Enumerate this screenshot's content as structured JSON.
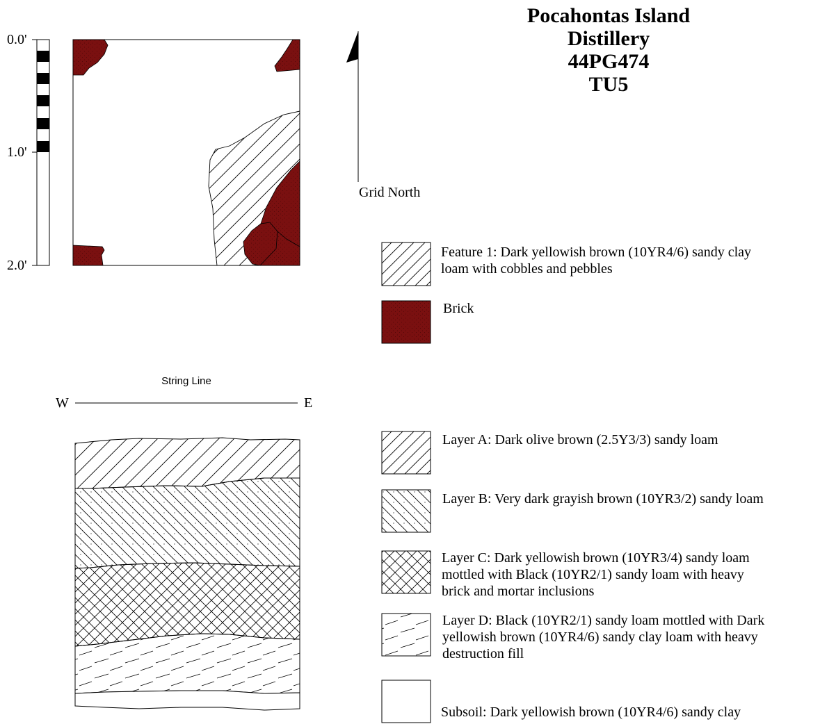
{
  "title": {
    "line1": "Pocahontas Island",
    "line2": "Distillery",
    "line3": "44PG474",
    "line4": "TU5"
  },
  "scale": {
    "top_label": "0.0'",
    "mid_label": "1.0'",
    "bottom_label": "2.0'"
  },
  "north_arrow": {
    "label": "Grid North"
  },
  "profile": {
    "string_line_label": "String Line",
    "west_label": "W",
    "east_label": "E"
  },
  "plan_legend": [
    {
      "id": "feature-1",
      "pattern": "diagonal-hatch",
      "text_line1": "Feature 1: Dark yellowish brown (10YR4/6) sandy clay",
      "text_line2": "loam with cobbles and pebbles"
    },
    {
      "id": "brick",
      "pattern": "brick-fill",
      "color": "#7a1010",
      "text_line1": "Brick"
    }
  ],
  "profile_legend": [
    {
      "id": "layer-a",
      "pattern": "diagonal-hatch",
      "text_line1": "Layer A: Dark olive brown (2.5Y3/3) sandy loam"
    },
    {
      "id": "layer-b",
      "pattern": "backslash-dotted",
      "text_line1": "Layer B: Very dark grayish brown (10YR3/2) sandy loam"
    },
    {
      "id": "layer-c",
      "pattern": "crosshatch",
      "text_line1": "Layer C: Dark yellowish brown (10YR3/4) sandy loam",
      "text_line2": "mottled with Black (10YR2/1) sandy loam with heavy",
      "text_line3": "brick and mortar inclusions"
    },
    {
      "id": "layer-d",
      "pattern": "dashes",
      "text_line1": "Layer D: Black (10YR2/1) sandy loam mottled with Dark",
      "text_line2": "yellowish brown (10YR4/6) sandy clay loam with heavy",
      "text_line3": "destruction fill"
    },
    {
      "id": "subsoil",
      "pattern": "none",
      "text_line1": "Subsoil: Dark yellowish brown (10YR4/6) sandy clay"
    }
  ]
}
